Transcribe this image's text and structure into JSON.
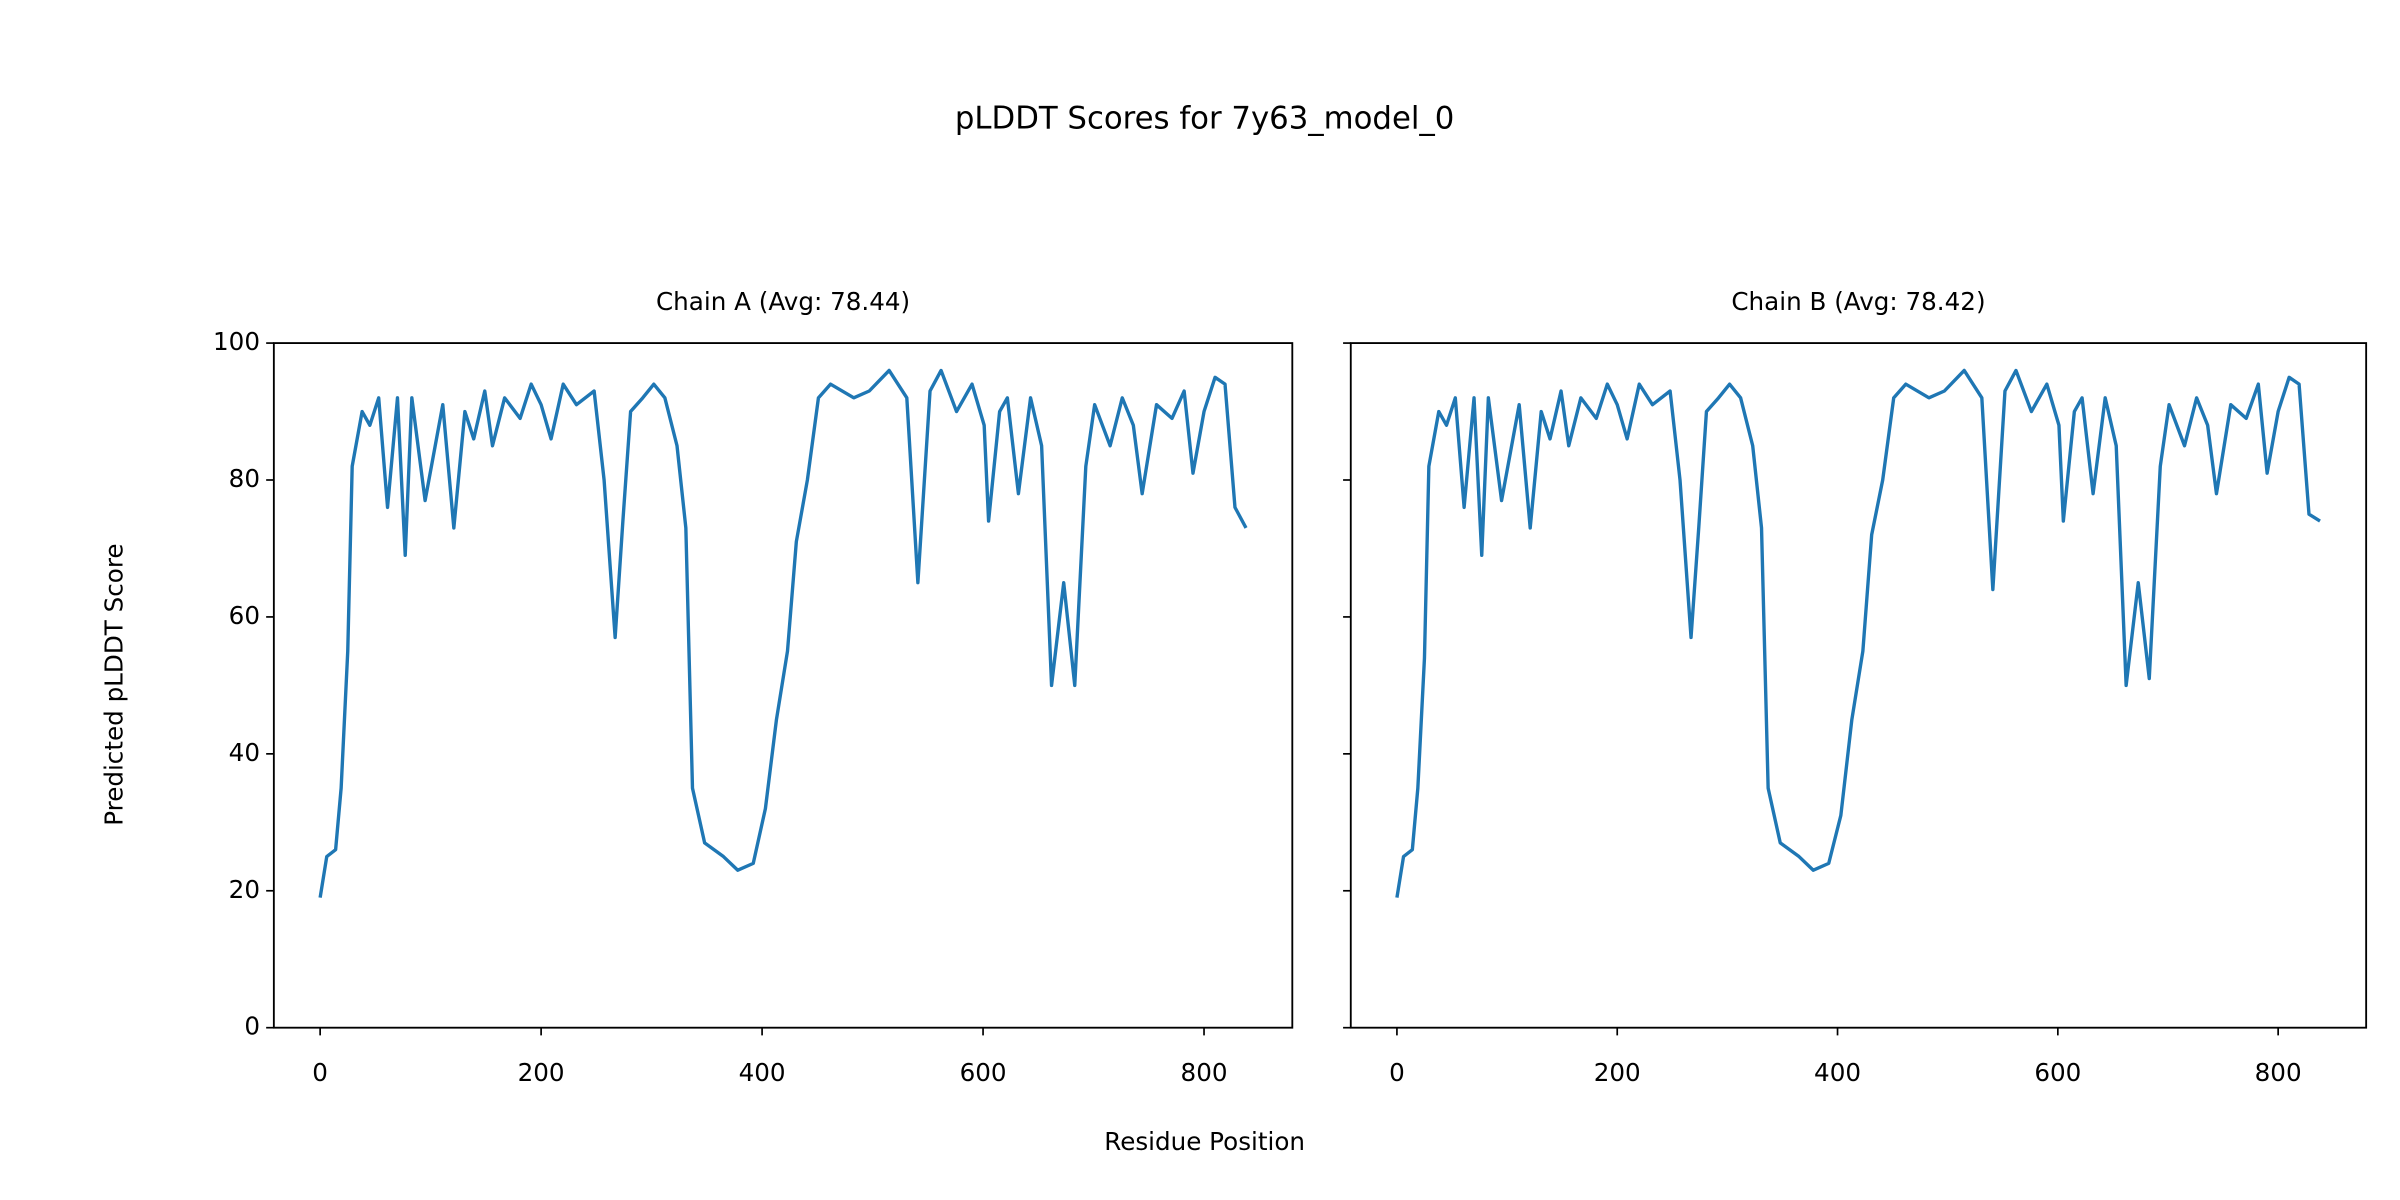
{
  "title": "pLDDT Scores for 7y63_model_0",
  "xlabel": "Residue Position",
  "ylabel": "Predicted pLDDT Score",
  "chart_data": [
    {
      "type": "line",
      "title": "Chain A (Avg: 78.44)",
      "color": "#1f77b4",
      "x": [
        0,
        6,
        14,
        19,
        25,
        29,
        38,
        45,
        53,
        61,
        70,
        77,
        83,
        95,
        111,
        121,
        131,
        139,
        149,
        156,
        167,
        181,
        191,
        200,
        209,
        220,
        232,
        248,
        257,
        267,
        274,
        281,
        292,
        302,
        312,
        323,
        331,
        337,
        348,
        365,
        378,
        392,
        403,
        413,
        423,
        431,
        441,
        451,
        462,
        483,
        497,
        515,
        531,
        541,
        552,
        562,
        576,
        590,
        601,
        605,
        615,
        622,
        632,
        643,
        653,
        662,
        673,
        683,
        693,
        701,
        715,
        726,
        736,
        744,
        757,
        771,
        782,
        790,
        800,
        810,
        819,
        828,
        838
      ],
      "values": [
        19,
        25,
        26,
        35,
        55,
        82,
        90,
        88,
        92,
        76,
        92,
        69,
        92,
        77,
        91,
        73,
        90,
        86,
        93,
        85,
        92,
        89,
        94,
        91,
        86,
        94,
        91,
        93,
        80,
        57,
        74,
        90,
        92,
        94,
        92,
        85,
        73,
        35,
        27,
        25,
        23,
        24,
        32,
        45,
        55,
        71,
        80,
        92,
        94,
        92,
        93,
        96,
        92,
        65,
        93,
        96,
        90,
        94,
        88,
        74,
        90,
        92,
        78,
        92,
        85,
        50,
        65,
        50,
        82,
        91,
        85,
        92,
        88,
        78,
        91,
        89,
        93,
        81,
        90,
        95,
        94,
        76,
        73
      ],
      "xlim": [
        -41.9,
        879.9
      ],
      "ylim": [
        0,
        100
      ],
      "xticks": [
        0,
        200,
        400,
        600,
        800
      ],
      "yticks": [
        0,
        20,
        40,
        60,
        80,
        100
      ],
      "sharey": false
    },
    {
      "type": "line",
      "title": "Chain B (Avg: 78.42)",
      "color": "#1f77b4",
      "x": [
        0,
        6,
        14,
        19,
        25,
        29,
        38,
        45,
        53,
        61,
        70,
        77,
        83,
        95,
        111,
        121,
        131,
        139,
        149,
        156,
        167,
        181,
        191,
        200,
        209,
        220,
        232,
        248,
        257,
        267,
        274,
        281,
        292,
        302,
        312,
        323,
        331,
        337,
        348,
        365,
        378,
        392,
        403,
        413,
        423,
        431,
        441,
        451,
        462,
        483,
        497,
        515,
        531,
        541,
        552,
        562,
        576,
        590,
        601,
        605,
        615,
        622,
        632,
        643,
        653,
        662,
        673,
        683,
        693,
        701,
        715,
        726,
        736,
        744,
        757,
        771,
        782,
        790,
        800,
        810,
        819,
        828,
        838
      ],
      "values": [
        19,
        25,
        26,
        35,
        54,
        82,
        90,
        88,
        92,
        76,
        92,
        69,
        92,
        77,
        91,
        73,
        90,
        86,
        93,
        85,
        92,
        89,
        94,
        91,
        86,
        94,
        91,
        93,
        80,
        57,
        73,
        90,
        92,
        94,
        92,
        85,
        73,
        35,
        27,
        25,
        23,
        24,
        31,
        45,
        55,
        72,
        80,
        92,
        94,
        92,
        93,
        96,
        92,
        64,
        93,
        96,
        90,
        94,
        88,
        74,
        90,
        92,
        78,
        92,
        85,
        50,
        65,
        51,
        82,
        91,
        85,
        92,
        88,
        78,
        91,
        89,
        94,
        81,
        90,
        95,
        94,
        75,
        74
      ],
      "xlim": [
        -41.9,
        879.9
      ],
      "ylim": [
        0,
        100
      ],
      "xticks": [
        0,
        200,
        400,
        600,
        800
      ],
      "yticks": [
        0,
        20,
        40,
        60,
        80,
        100
      ],
      "sharey": true
    }
  ]
}
